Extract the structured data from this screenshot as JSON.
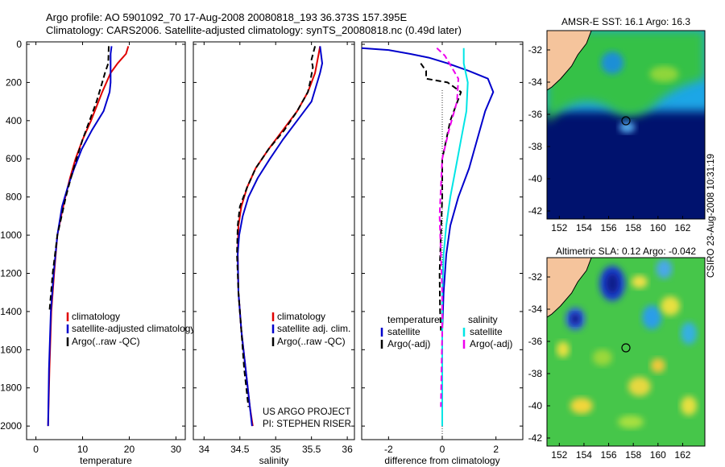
{
  "header": {
    "line1": "Argo profile: AO 5901092_70 17-Aug-2008 20080818_193 36.373S 157.395E",
    "line2": "Climatology: CARS2006. Satellite-adjusted climatology: synTS_20080818.nc (0.49d later)"
  },
  "side_stamp": "CSIRO 23-Aug-2008 10:31:19",
  "colors": {
    "climatology": "#e00000",
    "satellite": "#0000cc",
    "argo": "#000000",
    "sat_salinity": "#00e5e5",
    "argo_salinity": "#ee00ee",
    "land": "#f5c49c",
    "deep_blue": "#00126e"
  },
  "chart_data": [
    {
      "type": "line",
      "xlabel": "temperature",
      "xticks": [
        0,
        10,
        20,
        30
      ],
      "xlim": [
        -2,
        32
      ],
      "ylim": [
        2050,
        0
      ],
      "yticks": [
        0,
        200,
        400,
        600,
        800,
        1000,
        1200,
        1400,
        1600,
        1800,
        2000
      ],
      "legend_placement": "lower-center",
      "series": [
        {
          "name": "climatology",
          "color": "#e00000",
          "x": [
            19.8,
            19.3,
            17.5,
            16.0,
            14.2,
            11.8,
            10.0,
            8.5,
            7.3,
            6.3,
            5.4,
            4.6,
            3.9,
            3.3,
            2.9,
            2.6
          ],
          "y": [
            10,
            50,
            100,
            150,
            250,
            400,
            500,
            600,
            700,
            800,
            900,
            1000,
            1200,
            1400,
            1700,
            2000
          ]
        },
        {
          "name": "satellite-adjusted climatology",
          "color": "#0000cc",
          "x": [
            16.2,
            16.0,
            16.0,
            16.0,
            15.8,
            14.5,
            12.0,
            9.8,
            8.2,
            6.8,
            5.6,
            4.6,
            3.8,
            3.2,
            2.8,
            2.6
          ],
          "y": [
            10,
            50,
            150,
            200,
            250,
            350,
            450,
            550,
            650,
            750,
            850,
            1000,
            1200,
            1400,
            1700,
            2000
          ]
        },
        {
          "name": "Argo(..raw -QC)",
          "color": "#000000",
          "dashed": true,
          "x": [
            15.6,
            15.5,
            14.8,
            14.2,
            13.0,
            11.5,
            10.0,
            8.7,
            7.5,
            6.4,
            5.5,
            4.6,
            3.6,
            2.9
          ],
          "y": [
            10,
            100,
            150,
            200,
            300,
            400,
            500,
            600,
            700,
            800,
            900,
            1000,
            1200,
            1400
          ]
        }
      ],
      "legend": [
        "climatology",
        "satellite-adjusted climatology",
        "Argo(..raw -QC)"
      ]
    },
    {
      "type": "line",
      "xlabel": "salinity",
      "xticks": [
        34,
        34.5,
        35,
        35.5,
        36
      ],
      "xlim": [
        33.85,
        36.1
      ],
      "ylim": [
        2050,
        0
      ],
      "annotation": [
        "US ARGO PROJECT",
        "PI: STEPHEN RISER"
      ],
      "series": [
        {
          "name": "climatology",
          "color": "#e00000",
          "x": [
            35.62,
            35.6,
            35.55,
            35.45,
            35.3,
            35.1,
            34.9,
            34.72,
            34.6,
            34.52,
            34.48,
            34.47,
            34.48,
            34.52,
            34.58,
            34.64,
            34.68
          ],
          "y": [
            10,
            50,
            150,
            250,
            350,
            450,
            550,
            650,
            750,
            850,
            950,
            1100,
            1300,
            1500,
            1700,
            1900,
            2000
          ]
        },
        {
          "name": "satellite adj. clim.",
          "color": "#0000cc",
          "x": [
            35.62,
            35.65,
            35.62,
            35.5,
            35.3,
            35.1,
            34.92,
            34.75,
            34.62,
            34.54,
            34.49,
            34.47,
            34.48,
            34.52,
            34.58,
            34.64,
            34.67
          ],
          "y": [
            10,
            100,
            150,
            300,
            400,
            500,
            600,
            700,
            800,
            900,
            1000,
            1100,
            1300,
            1500,
            1700,
            1900,
            2000
          ]
        },
        {
          "name": "Argo(..raw -QC)",
          "color": "#000000",
          "dashed": true,
          "x": [
            35.55,
            35.5,
            35.52,
            35.48,
            35.45,
            35.3,
            35.12,
            34.9,
            34.72,
            34.6,
            34.5,
            34.47,
            34.46,
            34.48,
            34.52,
            34.56,
            34.62
          ],
          "y": [
            10,
            80,
            120,
            200,
            250,
            350,
            450,
            550,
            650,
            750,
            850,
            950,
            1100,
            1300,
            1500,
            1700,
            1900
          ]
        }
      ],
      "legend": [
        "climatology",
        "satellite adj. clim.",
        "Argo(..raw -QC)"
      ]
    },
    {
      "type": "line",
      "xlabel": "difference from climatology",
      "xticks": [
        -2,
        0,
        2
      ],
      "xlim": [
        -3,
        3
      ],
      "ylim": [
        2050,
        0
      ],
      "legend_titles": [
        "temperature",
        "salinity"
      ],
      "series": [
        {
          "name": "satellite",
          "group": "temperature",
          "color": "#0000cc",
          "x": [
            -3.0,
            -2.0,
            -1.2,
            -0.5,
            0.2,
            1.0,
            1.7,
            1.9,
            1.6,
            1.3,
            1.0,
            0.6,
            0.3,
            0.15,
            0.05,
            0.0,
            0.0,
            0.0
          ],
          "y": [
            20,
            30,
            50,
            70,
            100,
            140,
            180,
            250,
            350,
            500,
            650,
            800,
            950,
            1100,
            1300,
            1500,
            1700,
            2000
          ]
        },
        {
          "name": "Argo(-adj)",
          "group": "temperature",
          "color": "#000000",
          "dashed": true,
          "x": [
            -0.8,
            -0.6,
            -0.6,
            0.2,
            0.7,
            0.3,
            0.15,
            0.0,
            0.0,
            -0.05,
            -0.1,
            -0.08,
            -0.05
          ],
          "y": [
            100,
            140,
            180,
            200,
            250,
            400,
            500,
            600,
            800,
            1000,
            1200,
            1400,
            1500
          ]
        },
        {
          "name": "satellite",
          "group": "salinity",
          "color": "#00e5e5",
          "x": [
            0.8,
            0.8,
            0.95,
            0.9,
            0.7,
            0.5,
            0.3,
            0.15,
            0.05,
            0.0,
            0.0
          ],
          "y": [
            20,
            100,
            200,
            350,
            500,
            650,
            800,
            950,
            1100,
            1300,
            2000
          ]
        },
        {
          "name": "Argo(-adj)",
          "group": "salinity",
          "color": "#ee00ee",
          "dashed": true,
          "x": [
            -0.2,
            0.1,
            0.6,
            0.55,
            0.25,
            0.0,
            -0.05,
            -0.1,
            -0.05,
            0.0,
            0.0,
            -0.05
          ],
          "y": [
            20,
            60,
            180,
            300,
            450,
            600,
            750,
            900,
            1100,
            1300,
            1500,
            1900
          ]
        }
      ],
      "legend": [
        "satellite",
        "Argo(-adj)",
        "satellite",
        "Argo(-adj)"
      ]
    },
    {
      "type": "heatmap",
      "title": "AMSR-E SST: 16.1  Argo: 16.3",
      "xticks": [
        152,
        154,
        156,
        158,
        160,
        162
      ],
      "yticks": [
        -32,
        -34,
        -36,
        -38,
        -40,
        -42
      ],
      "xlim": [
        151,
        163.8
      ],
      "ylim": [
        -42.5,
        -30.8
      ],
      "argo_position": [
        157.4,
        -36.4
      ]
    },
    {
      "type": "heatmap",
      "title": "Altimetric SLA: 0.12  Argo: -0.042",
      "xticks": [
        152,
        154,
        156,
        158,
        160,
        162
      ],
      "yticks": [
        -32,
        -34,
        -36,
        -38,
        -40,
        -42
      ],
      "xlim": [
        151,
        163.8
      ],
      "ylim": [
        -42.5,
        -30.8
      ],
      "argo_position": [
        157.4,
        -36.4
      ]
    }
  ]
}
